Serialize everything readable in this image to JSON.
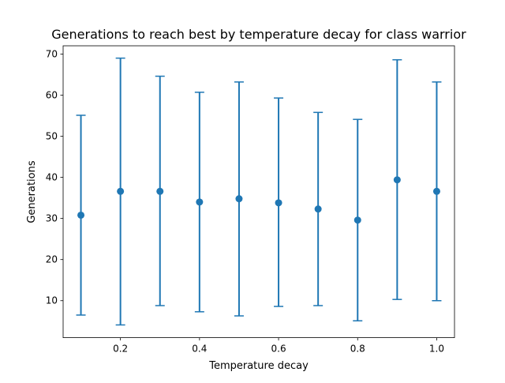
{
  "chart_data": {
    "type": "scatter",
    "title": "Generations to reach best by temperature decay for class warrior",
    "xlabel": "Temperature decay",
    "ylabel": "Generations",
    "xlim": [
      0.055,
      1.045
    ],
    "ylim": [
      1.0,
      72.0
    ],
    "x_ticks": [
      0.2,
      0.4,
      0.6,
      0.8,
      1.0
    ],
    "x_tick_labels": [
      "0.2",
      "0.4",
      "0.6",
      "0.8",
      "1.0"
    ],
    "y_ticks": [
      10,
      20,
      30,
      40,
      50,
      60,
      70
    ],
    "y_tick_labels": [
      "10",
      "20",
      "30",
      "40",
      "50",
      "60",
      "70"
    ],
    "grid": false,
    "color": "#1f77b4",
    "series": [
      {
        "x": [
          0.1,
          0.2,
          0.3,
          0.4,
          0.5,
          0.6,
          0.7,
          0.8,
          0.9,
          1.0
        ],
        "y": [
          30.8,
          36.6,
          36.6,
          34.0,
          34.8,
          33.8,
          32.3,
          29.6,
          39.4,
          36.6
        ],
        "err_low": [
          6.5,
          4.1,
          8.8,
          7.3,
          6.3,
          8.6,
          8.8,
          5.1,
          10.3,
          10.0
        ],
        "err_high": [
          55.1,
          69.0,
          64.6,
          60.7,
          63.2,
          59.3,
          55.8,
          54.1,
          68.6,
          63.2
        ]
      }
    ]
  }
}
